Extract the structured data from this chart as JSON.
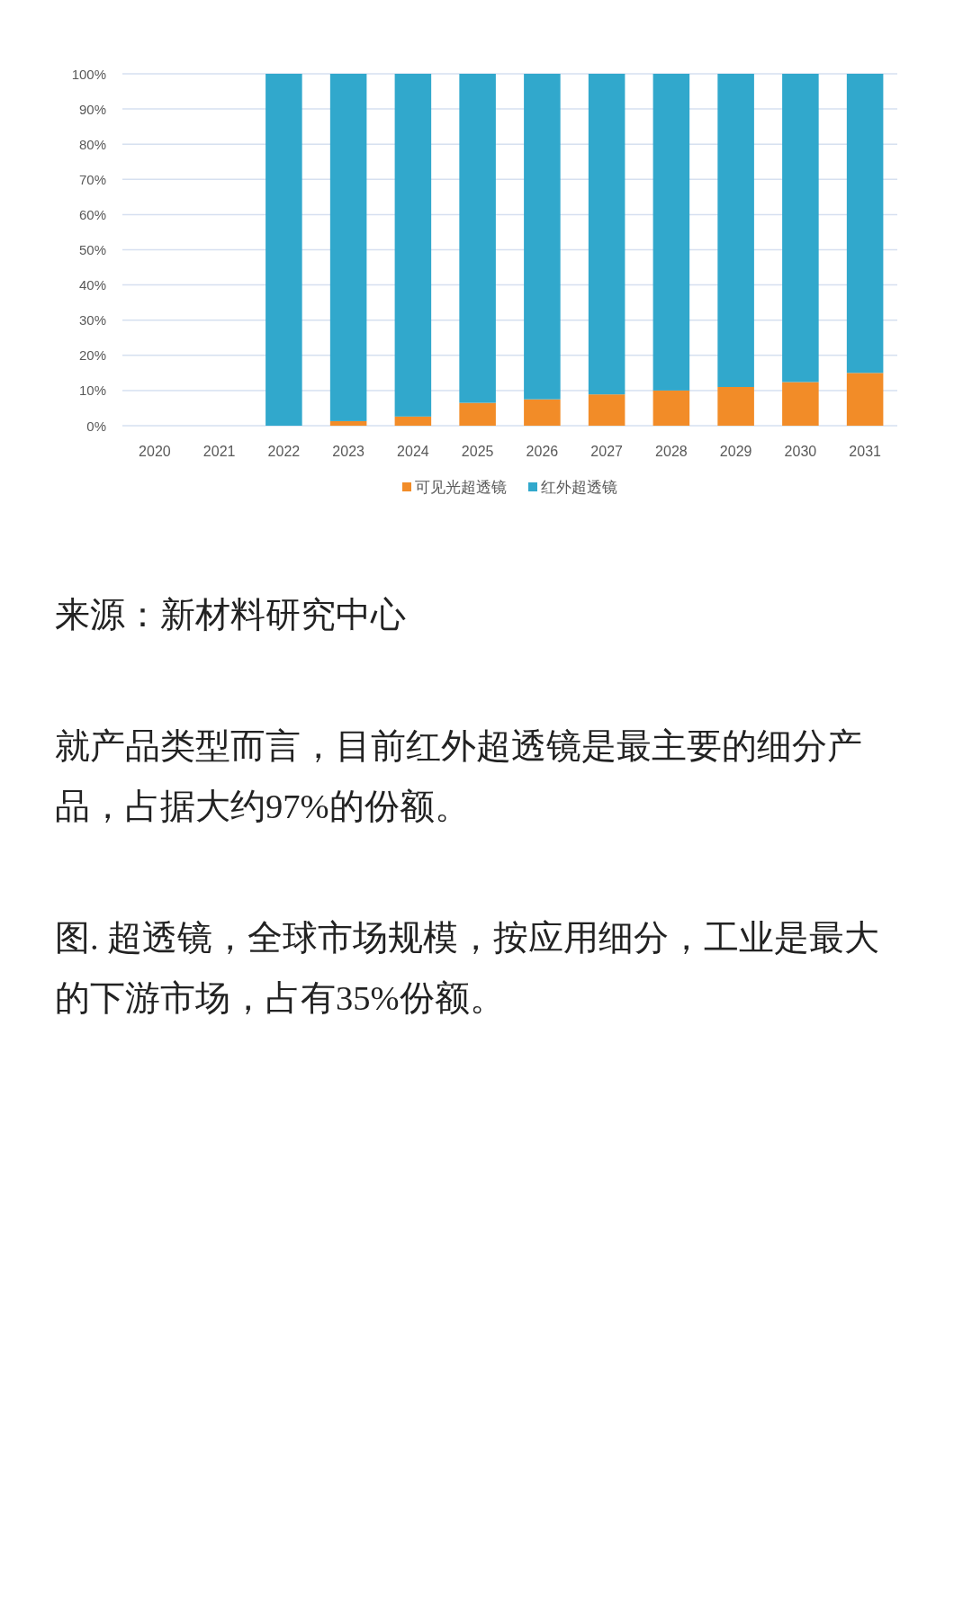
{
  "chart_data": {
    "type": "bar",
    "stacked": true,
    "categories": [
      "2020",
      "2021",
      "2022",
      "2023",
      "2024",
      "2025",
      "2026",
      "2027",
      "2028",
      "2029",
      "2030",
      "2031"
    ],
    "series": [
      {
        "name": "可见光超透镜",
        "color": "#f28c28",
        "values": [
          null,
          null,
          0,
          1.3,
          2.6,
          6.5,
          7.5,
          8.9,
          10,
          11,
          12.4,
          15
        ]
      },
      {
        "name": "红外超透镜",
        "color": "#31a8cc",
        "values": [
          null,
          null,
          100,
          98.7,
          97.4,
          93.5,
          92.5,
          91.1,
          90,
          89,
          87.6,
          85
        ]
      }
    ],
    "ylim": [
      0,
      100
    ],
    "yticks": [
      {
        "value": 0,
        "label": "0%"
      },
      {
        "value": 10,
        "label": "10%"
      },
      {
        "value": 20,
        "label": "20%"
      },
      {
        "value": 30,
        "label": "30%"
      },
      {
        "value": 40,
        "label": "40%"
      },
      {
        "value": 50,
        "label": "50%"
      },
      {
        "value": 60,
        "label": "60%"
      },
      {
        "value": 70,
        "label": "70%"
      },
      {
        "value": 80,
        "label": "80%"
      },
      {
        "value": 90,
        "label": "90%"
      },
      {
        "value": 100,
        "label": "100%"
      }
    ],
    "grid": "y",
    "legend": "bottom",
    "annotations": [
      "来源：新材料研究中心",
      "就产品类型而言，目前红外超透镜是最主要的细分产品，占据大约97%的份额。",
      "图. 超透镜，全球市场规模，按应用细分，工业是最大的下游市场，占有35%份额。"
    ]
  }
}
